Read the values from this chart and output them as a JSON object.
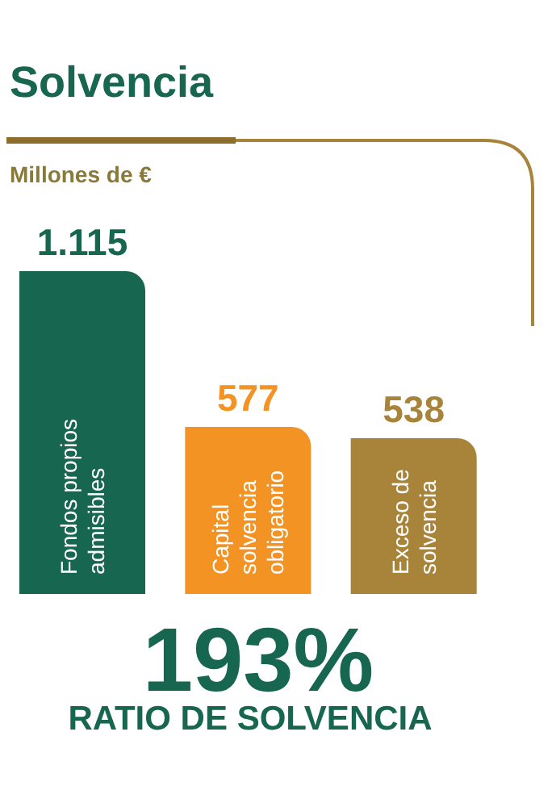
{
  "chart_data": {
    "type": "bar",
    "title": "Solvencia",
    "subtitle": "Millones de €",
    "categories": [
      "Fondos propios admisibles",
      "Capital solvencia obligatorio",
      "Exceso de solvencia"
    ],
    "values": [
      1115,
      577,
      538
    ],
    "colors": [
      "#17664f",
      "#f39324",
      "#a7843a"
    ],
    "value_labels": [
      "1.115",
      "577",
      "538"
    ],
    "annotations": [
      "193%",
      "RATIO DE SOLVENCIA"
    ]
  }
}
